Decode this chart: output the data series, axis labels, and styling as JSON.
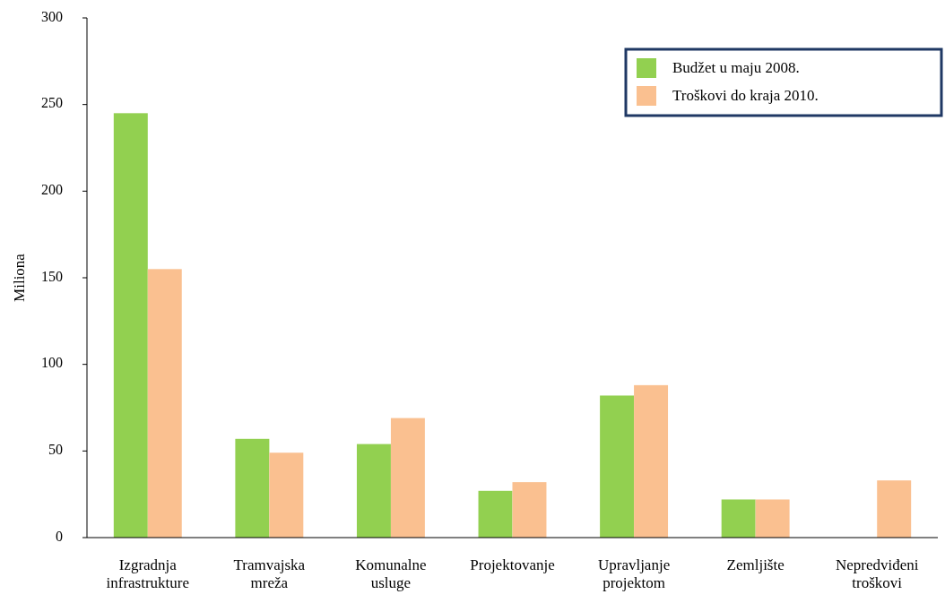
{
  "chart_data": {
    "type": "bar",
    "ylabel": "Miliona",
    "categories": [
      "Izgradnja infrastrukture",
      "Tramvajska mreža",
      "Komunalne usluge",
      "Projektovanje",
      "Upravljanje projektom",
      "Zemljište",
      "Nepredviđeni troškovi"
    ],
    "series": [
      {
        "name": "Budžet u maju 2008.",
        "color": "#92d050",
        "values": [
          245,
          57,
          54,
          27,
          82,
          22,
          null
        ]
      },
      {
        "name": "Troškovi do kraja 2010.",
        "color": "#fac090",
        "values": [
          155,
          49,
          69,
          32,
          88,
          22,
          33
        ]
      }
    ],
    "ylim": [
      0,
      300
    ],
    "yticks": [
      0,
      50,
      100,
      150,
      200,
      250,
      300
    ],
    "grid": false,
    "legend": "top right"
  }
}
